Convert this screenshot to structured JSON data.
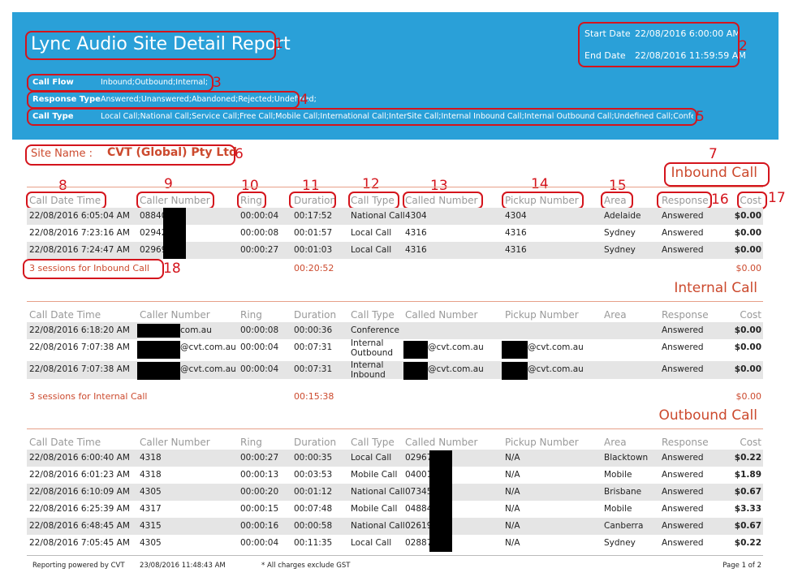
{
  "header": {
    "title": "Lync Audio Site Detail Report",
    "start_label": "Start Date",
    "start_value": "22/08/2016 6:00:00 AM",
    "end_label": "End Date",
    "end_value": "22/08/2016 11:59:59 AM",
    "call_flow_label": "Call Flow",
    "call_flow_value": "Inbound;Outbound;Internal;",
    "response_label": "Response Type",
    "response_value": "Answered;Unanswered;Abandoned;Rejected;Undefined;",
    "call_type_label": "Call Type",
    "call_type_value": "Local Call;National Call;Service Call;Free Call;Mobile Call;International Call;InterSite Call;Internal Inbound Call;Internal Outbound Call;Undefined Call;Confere"
  },
  "site": {
    "label": "Site Name :",
    "value": "CVT (Global) Pty Ltd"
  },
  "columns": [
    "Call Date Time",
    "Caller Number",
    "Ring",
    "Duration",
    "Call Type",
    "Called Number",
    "Pickup Number",
    "Area",
    "Response",
    "Cost"
  ],
  "annotations": [
    "1",
    "2",
    "3",
    "4",
    "5",
    "6",
    "7",
    "8",
    "9",
    "10",
    "11",
    "12",
    "13",
    "14",
    "15",
    "16",
    "17",
    "18"
  ],
  "inbound": {
    "title": "Inbound Call",
    "rows": [
      {
        "datetime": "22/08/2016 6:05:04 AM",
        "caller": "08840",
        "ring": "00:00:04",
        "duration": "00:17:52",
        "type": "National Call",
        "called": "4304",
        "pickup": "4304",
        "area": "Adelaide",
        "response": "Answered",
        "cost": "$0.00"
      },
      {
        "datetime": "22/08/2016 7:23:16 AM",
        "caller": "02942",
        "ring": "00:00:08",
        "duration": "00:01:57",
        "type": "Local Call",
        "called": "4316",
        "pickup": "4316",
        "area": "Sydney",
        "response": "Answered",
        "cost": "$0.00"
      },
      {
        "datetime": "22/08/2016 7:24:47 AM",
        "caller": "02969",
        "ring": "00:00:27",
        "duration": "00:01:03",
        "type": "Local Call",
        "called": "4316",
        "pickup": "4316",
        "area": "Sydney",
        "response": "Answered",
        "cost": "$0.00"
      }
    ],
    "summary": "3  sessions for  Inbound Call",
    "total_duration": "00:20:52",
    "total_cost": "$0.00"
  },
  "internal": {
    "title": "Internal Call",
    "rows": [
      {
        "datetime": "22/08/2016 6:18:20 AM",
        "caller": "com.au",
        "ring": "00:00:08",
        "duration": "00:00:36",
        "type": "Conference",
        "called": "",
        "pickup": "",
        "area": "",
        "response": "Answered",
        "cost": "$0.00"
      },
      {
        "datetime": "22/08/2016 7:07:38 AM",
        "caller": "@cvt.com.au",
        "ring": "00:00:04",
        "duration": "00:07:31",
        "type": "Internal Outbound",
        "called": "@cvt.com.au",
        "pickup": "@cvt.com.au",
        "area": "",
        "response": "Answered",
        "cost": "$0.00"
      },
      {
        "datetime": "22/08/2016 7:07:38 AM",
        "caller": "@cvt.com.au",
        "ring": "00:00:04",
        "duration": "00:07:31",
        "type": "Internal Inbound",
        "called": "@cvt.com.au",
        "pickup": "@cvt.com.au",
        "area": "",
        "response": "Answered",
        "cost": "$0.00"
      }
    ],
    "summary": "3  sessions for  Internal Call",
    "total_duration": "00:15:38",
    "total_cost": "$0.00"
  },
  "outbound": {
    "title": "Outbound Call",
    "rows": [
      {
        "datetime": "22/08/2016 6:00:40 AM",
        "caller": "4318",
        "ring": "00:00:27",
        "duration": "00:00:35",
        "type": "Local Call",
        "called": "02967",
        "pickup": "N/A",
        "area": "Blacktown",
        "response": "Answered",
        "cost": "$0.22"
      },
      {
        "datetime": "22/08/2016 6:01:23 AM",
        "caller": "4318",
        "ring": "00:00:13",
        "duration": "00:03:53",
        "type": "Mobile Call",
        "called": "04001",
        "pickup": "N/A",
        "area": "Mobile",
        "response": "Answered",
        "cost": "$1.89"
      },
      {
        "datetime": "22/08/2016 6:10:09 AM",
        "caller": "4305",
        "ring": "00:00:20",
        "duration": "00:01:12",
        "type": "National Call",
        "called": "07345",
        "pickup": "N/A",
        "area": "Brisbane",
        "response": "Answered",
        "cost": "$0.67"
      },
      {
        "datetime": "22/08/2016 6:25:39 AM",
        "caller": "4317",
        "ring": "00:00:15",
        "duration": "00:07:48",
        "type": "Mobile Call",
        "called": "04884",
        "pickup": "N/A",
        "area": "Mobile",
        "response": "Answered",
        "cost": "$3.33"
      },
      {
        "datetime": "22/08/2016 6:48:45 AM",
        "caller": "4315",
        "ring": "00:00:16",
        "duration": "00:00:58",
        "type": "National Call",
        "called": "02619",
        "pickup": "N/A",
        "area": "Canberra",
        "response": "Answered",
        "cost": "$0.67"
      },
      {
        "datetime": "22/08/2016 7:05:45 AM",
        "caller": "4305",
        "ring": "00:00:04",
        "duration": "00:11:35",
        "type": "Local Call",
        "called": "02887",
        "pickup": "N/A",
        "area": "Sydney",
        "response": "Answered",
        "cost": "$0.22"
      }
    ]
  },
  "footer": {
    "powered": "Reporting powered by CVT",
    "timestamp": "23/08/2016 11:48:43 AM",
    "note": "* All charges exclude GST",
    "page": "Page 1 of 2"
  }
}
